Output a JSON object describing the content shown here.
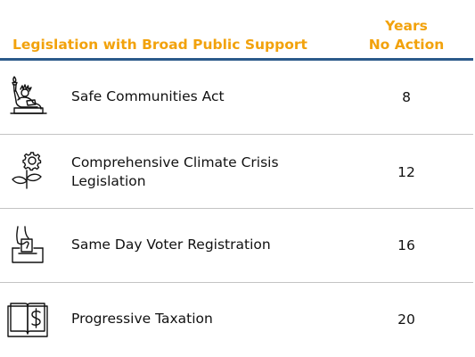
{
  "header": {
    "title": "Legislation with Broad Public Support",
    "years_line1": "Years",
    "years_line2": "No Action"
  },
  "colors": {
    "header_text": "#f2a20c",
    "header_rule": "#2b5a8a",
    "row_divider": "#c4c4c4"
  },
  "rows": [
    {
      "icon": "statue-of-liberty-icon",
      "label": "Safe Communities Act",
      "years": "8"
    },
    {
      "icon": "gear-plant-icon",
      "label_line1": "Comprehensive Climate Crisis",
      "label_line2": "Legislation",
      "years": "12"
    },
    {
      "icon": "ballot-box-icon",
      "label": "Same Day Voter Registration",
      "years": "16"
    },
    {
      "icon": "dollar-book-icon",
      "label": "Progressive Taxation",
      "years": "20"
    }
  ]
}
